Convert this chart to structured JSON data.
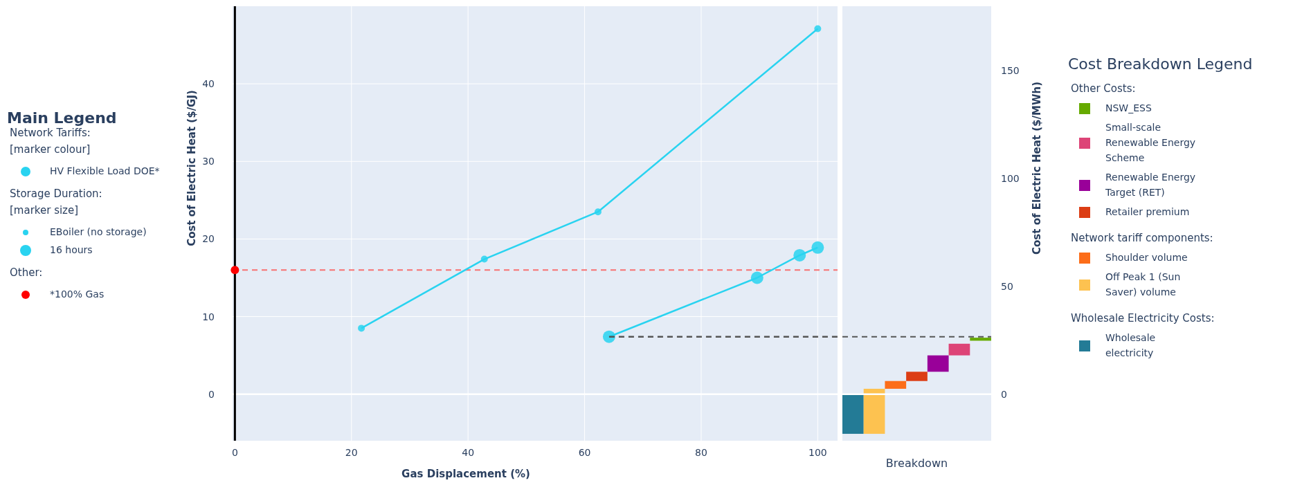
{
  "chart_data": [
    {
      "type": "line",
      "xlabel": "Gas Displacement (%)",
      "ylabel": "Cost of Electric Heat ($/GJ)",
      "legend_title": "Main Legend",
      "legend": "left",
      "marker": "circle",
      "grid": true,
      "xlim": [
        -0.4,
        103.4
      ],
      "xticks": [
        0,
        20,
        40,
        60,
        80,
        100
      ],
      "ylim": [
        -6,
        50
      ],
      "yticks": [
        0,
        10,
        20,
        30,
        40
      ],
      "annotations": [
        "Network Tariffs:\n[marker colour]",
        "HV Flexible Load DOE*",
        "Storage Duration:\n[marker size]",
        "Other:"
      ],
      "ref_lines": [
        {
          "axis": "y",
          "value": 16,
          "color": "#f87171",
          "line_style": "dashed"
        }
      ],
      "series": [
        {
          "name": "EBoiler (no storage)",
          "color": "#29d3f0",
          "x": [
            21.7,
            42.8,
            62.3,
            100
          ],
          "values": [
            8.5,
            17.4,
            23.5,
            47.1
          ]
        },
        {
          "name": "16 hours",
          "color": "#29d3f0",
          "x": [
            64.2,
            89.6,
            96.9,
            100
          ],
          "values": [
            7.4,
            15.0,
            17.9,
            18.9
          ]
        },
        {
          "name": "*100% Gas",
          "type": "scatter",
          "color": "#ff0000",
          "x": [
            0
          ],
          "values": [
            16
          ]
        },
        {
          "type": "line",
          "color": "#555555",
          "marker": "none",
          "line_style": "dashed",
          "x": [
            64.2,
            103.4
          ],
          "values": [
            7.4,
            7.4
          ]
        }
      ]
    },
    {
      "type": "bar",
      "xlabel": "Breakdown",
      "legend_title": "Cost Breakdown Legend",
      "legend": "right",
      "categories": [
        null,
        null,
        null,
        null,
        null,
        null,
        null
      ],
      "ylim": [
        -21.6,
        180
      ],
      "yticks": [
        0,
        50,
        100,
        150
      ],
      "ylabel": "Cost of Electric Heat ($/MWh)",
      "annotations": [
        "Other Costs:",
        "Network tariff components:",
        "Wholesale Electricity Costs:"
      ],
      "ref_lines": [
        {
          "axis": "y",
          "value": 26.6,
          "color": "#555555",
          "line_style": "dashed"
        }
      ],
      "series": [
        {
          "name": "Wholesale electricity",
          "color": "#237b96",
          "values": [
            -18.4,
            null,
            null,
            null,
            null,
            null,
            null
          ],
          "base": [
            0,
            null,
            null,
            null,
            null,
            null,
            null
          ]
        },
        {
          "name": "Off Peak 1 (Sun Saver) volume",
          "color": "#fdc250",
          "values": [
            null,
            20.9,
            null,
            null,
            null,
            null,
            null
          ],
          "base": [
            null,
            -18.4,
            null,
            null,
            null,
            null,
            null
          ]
        },
        {
          "name": "Shoulder volume",
          "color": "#fc6d19",
          "values": [
            null,
            null,
            3.6,
            null,
            null,
            null,
            null
          ],
          "base": [
            null,
            null,
            2.5,
            null,
            null,
            null,
            null
          ]
        },
        {
          "name": "Retailer premium",
          "color": "#dc3d14",
          "values": [
            null,
            null,
            null,
            4.3,
            null,
            null,
            null
          ],
          "base": [
            null,
            null,
            null,
            6.1,
            null,
            null,
            null
          ]
        },
        {
          "name": "Renewable Energy Target (RET)",
          "color": "#990099",
          "values": [
            null,
            null,
            null,
            null,
            7.6,
            null,
            null
          ],
          "base": [
            null,
            null,
            null,
            null,
            10.4,
            null,
            null
          ]
        },
        {
          "name": "Small-scale Renewable Energy Scheme",
          "color": "#dd4477",
          "values": [
            null,
            null,
            null,
            null,
            null,
            5.4,
            null
          ],
          "base": [
            null,
            null,
            null,
            null,
            null,
            18.0,
            null
          ]
        },
        {
          "name": "NSW_ESS",
          "color": "#66aa00",
          "values": [
            null,
            null,
            null,
            null,
            null,
            null,
            1.4
          ],
          "base": [
            null,
            null,
            null,
            null,
            null,
            null,
            24.8
          ]
        }
      ]
    }
  ]
}
